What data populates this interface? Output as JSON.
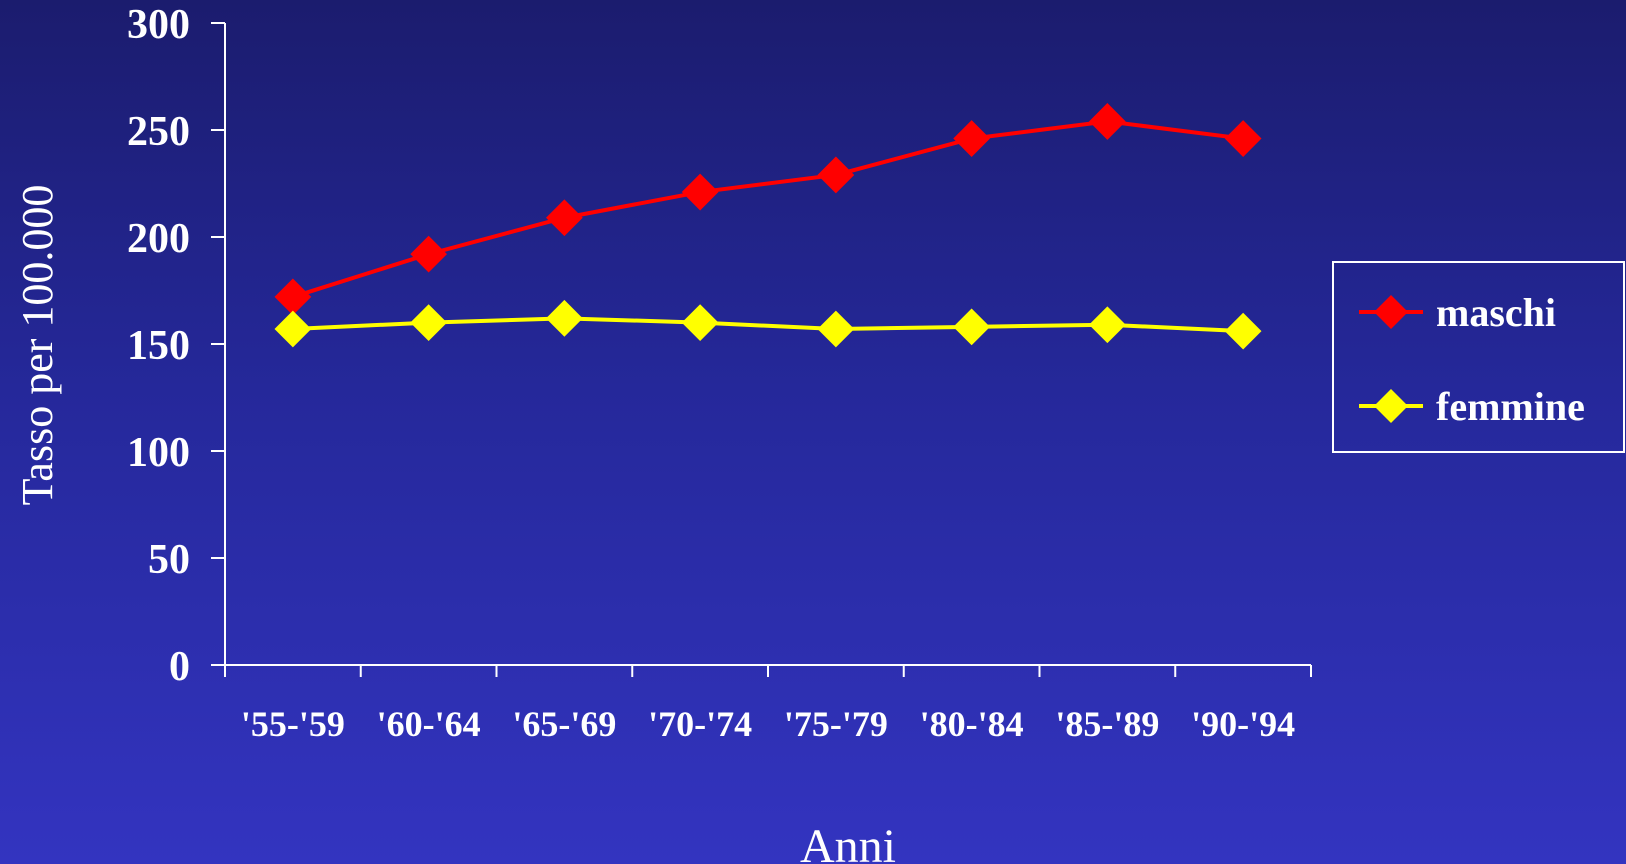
{
  "chart_data": {
    "type": "line",
    "title": "",
    "xlabel": "Anni",
    "ylabel": "Tasso per 100.000",
    "categories": [
      "'55-'59",
      "'60-'64",
      "'65-'69",
      "'70-'74",
      "'75-'79",
      "'80-'84",
      "'85-'89",
      "'90-'94"
    ],
    "ylim": [
      0,
      300
    ],
    "yticks": [
      "0",
      "50",
      "100",
      "150",
      "200",
      "250",
      "300"
    ],
    "grid": false,
    "legend_position": "right",
    "marker": "diamond",
    "series": [
      {
        "name": "maschi",
        "color": "#ff0000",
        "values": [
          172,
          192,
          209,
          221,
          229,
          246,
          254,
          246
        ]
      },
      {
        "name": "femmine",
        "color": "#ffff00",
        "values": [
          157,
          160,
          162,
          160,
          157,
          158,
          159,
          156
        ]
      }
    ]
  },
  "colors": {
    "axis": "#ffffff",
    "legend_border": "#ffffff"
  }
}
